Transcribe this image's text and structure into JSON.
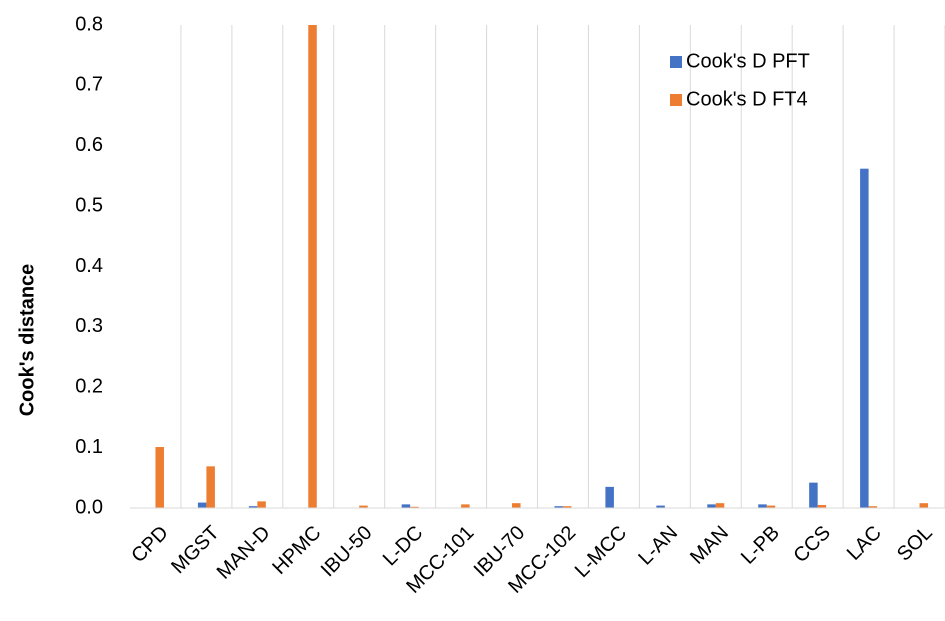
{
  "chart_data": {
    "type": "bar",
    "y_label": "Cook's distance",
    "categories": [
      "CPD",
      "MGST",
      "MAN-D",
      "HPMC",
      "IBU-50",
      "L-DC",
      "MCC-101",
      "IBU-70",
      "MCC-102",
      "L-MCC",
      "L-AN",
      "MAN",
      "L-PB",
      "CCS",
      "LAC",
      "SOL"
    ],
    "series": [
      {
        "name": "Cook's D PFT",
        "color": "#4472c4",
        "values": [
          0,
          0.009,
          0.003,
          0,
          0,
          0.006,
          0,
          0,
          0.003,
          0.035,
          0.004,
          0.006,
          0.006,
          0.042,
          0.562,
          0
        ]
      },
      {
        "name": "Cook's D FT4",
        "color": "#ed7d31",
        "values": [
          0.101,
          0.069,
          0.011,
          0.8,
          0.004,
          0.002,
          0.006,
          0.008,
          0.003,
          0,
          0,
          0.008,
          0.004,
          0.005,
          0.003,
          0.008
        ]
      }
    ],
    "ylim": [
      0,
      0.8
    ],
    "yticks": [
      {
        "value": 0,
        "label": "0.0"
      },
      0.1,
      0.2,
      0.3,
      0.4,
      0.5,
      0.6,
      0.7,
      0.8
    ],
    "grid": "vertical",
    "legend": "top-right"
  }
}
